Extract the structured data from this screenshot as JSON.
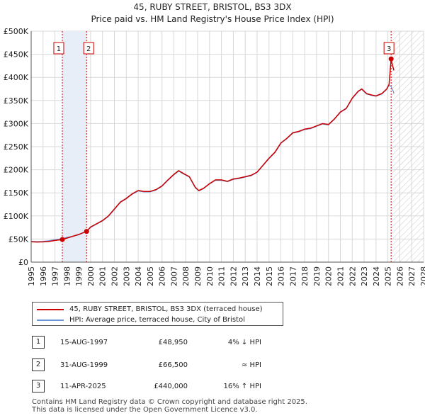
{
  "chart_data": {
    "type": "line",
    "title": "45, RUBY STREET, BRISTOL, BS3 3DX",
    "subtitle": "Price paid vs. HM Land Registry's House Price Index (HPI)",
    "xlim": [
      1995,
      2028
    ],
    "ylim": [
      0,
      500000
    ],
    "x_ticks": [
      "1995",
      "1996",
      "1997",
      "1998",
      "1999",
      "2000",
      "2001",
      "2002",
      "2003",
      "2004",
      "2005",
      "2006",
      "2007",
      "2008",
      "2009",
      "2010",
      "2011",
      "2012",
      "2013",
      "2014",
      "2015",
      "2016",
      "2017",
      "2018",
      "2019",
      "2020",
      "2021",
      "2022",
      "2023",
      "2024",
      "2025",
      "2026",
      "2027",
      "2028"
    ],
    "y_ticks": [
      {
        "value": 0,
        "label": "£0"
      },
      {
        "value": 50000,
        "label": "£50K"
      },
      {
        "value": 100000,
        "label": "£100K"
      },
      {
        "value": 150000,
        "label": "£150K"
      },
      {
        "value": 200000,
        "label": "£200K"
      },
      {
        "value": 250000,
        "label": "£250K"
      },
      {
        "value": 300000,
        "label": "£300K"
      },
      {
        "value": 350000,
        "label": "£350K"
      },
      {
        "value": 400000,
        "label": "£400K"
      },
      {
        "value": 450000,
        "label": "£450K"
      },
      {
        "value": 500000,
        "label": "£500K"
      }
    ],
    "grid": true,
    "hatched_future_from": 2025.3,
    "series": [
      {
        "name": "45, RUBY STREET, BRISTOL, BS3 3DX (terraced house)",
        "color": "#cc0000",
        "x": [
          1995.0,
          1995.5,
          1996.0,
          1996.5,
          1997.0,
          1997.62,
          1998.0,
          1998.5,
          1999.0,
          1999.66,
          2000.0,
          2000.5,
          2001.0,
          2001.5,
          2002.0,
          2002.5,
          2003.0,
          2003.5,
          2004.0,
          2004.5,
          2005.0,
          2005.5,
          2006.0,
          2006.5,
          2007.0,
          2007.4,
          2007.8,
          2008.3,
          2008.8,
          2009.1,
          2009.5,
          2010.0,
          2010.5,
          2011.0,
          2011.5,
          2012.0,
          2012.5,
          2013.0,
          2013.5,
          2014.0,
          2014.5,
          2015.0,
          2015.5,
          2016.0,
          2016.5,
          2017.0,
          2017.5,
          2018.0,
          2018.5,
          2019.0,
          2019.5,
          2020.0,
          2020.5,
          2021.0,
          2021.5,
          2022.0,
          2022.5,
          2022.8,
          2023.2,
          2023.6,
          2024.0,
          2024.5,
          2024.9,
          2025.1,
          2025.27,
          2025.35,
          2025.45,
          2025.5
        ],
        "y": [
          44000,
          43500,
          43800,
          45000,
          47000,
          48950,
          52000,
          56000,
          60000,
          66500,
          76000,
          83000,
          90000,
          100000,
          115000,
          130000,
          138000,
          148000,
          155000,
          153000,
          153000,
          157000,
          165000,
          178000,
          190000,
          198000,
          192000,
          185000,
          162000,
          155000,
          160000,
          170000,
          178000,
          178000,
          175000,
          180000,
          182000,
          185000,
          188000,
          195000,
          210000,
          225000,
          238000,
          258000,
          268000,
          280000,
          283000,
          288000,
          290000,
          295000,
          300000,
          298000,
          310000,
          325000,
          333000,
          355000,
          370000,
          375000,
          365000,
          362000,
          360000,
          365000,
          375000,
          385000,
          440000,
          430000,
          420000,
          415000
        ]
      },
      {
        "name": "HPI: Average price, terraced house, City of Bristol",
        "color": "#6a96d6",
        "x": [
          1995.0,
          1995.5,
          1996.0,
          1996.5,
          1997.0,
          1997.62,
          1998.0,
          1998.5,
          1999.0,
          1999.66,
          2000.0,
          2000.5,
          2001.0,
          2001.5,
          2002.0,
          2002.5,
          2003.0,
          2003.5,
          2004.0,
          2004.5,
          2005.0,
          2005.5,
          2006.0,
          2006.5,
          2007.0,
          2007.4,
          2007.8,
          2008.3,
          2008.8,
          2009.1,
          2009.5,
          2010.0,
          2010.5,
          2011.0,
          2011.5,
          2012.0,
          2012.5,
          2013.0,
          2013.5,
          2014.0,
          2014.5,
          2015.0,
          2015.5,
          2016.0,
          2016.5,
          2017.0,
          2017.5,
          2018.0,
          2018.5,
          2019.0,
          2019.5,
          2020.0,
          2020.5,
          2021.0,
          2021.5,
          2022.0,
          2022.5,
          2022.8,
          2023.2,
          2023.6,
          2024.0,
          2024.5,
          2024.9,
          2025.1,
          2025.27,
          2025.35,
          2025.45,
          2025.5
        ],
        "y": [
          45000,
          44500,
          45000,
          46500,
          48500,
          51000,
          53500,
          56000,
          59000,
          66500,
          75000,
          82000,
          89000,
          99000,
          114000,
          129000,
          137000,
          147000,
          154000,
          152000,
          152000,
          156000,
          164000,
          177000,
          189000,
          197000,
          191000,
          184000,
          161000,
          154000,
          159000,
          169000,
          177000,
          177000,
          174000,
          179000,
          181000,
          184000,
          187000,
          194000,
          209000,
          224000,
          237000,
          257000,
          267000,
          279000,
          282000,
          287000,
          289000,
          294000,
          299000,
          297000,
          309000,
          324000,
          332000,
          354000,
          369000,
          374000,
          364000,
          361000,
          359000,
          364000,
          374000,
          383000,
          380000,
          375000,
          370000,
          365000
        ]
      }
    ],
    "sale_markers": [
      {
        "label": "1",
        "x": 1997.62,
        "y": 48950
      },
      {
        "label": "2",
        "x": 1999.66,
        "y": 66500
      },
      {
        "label": "3",
        "x": 2025.27,
        "y": 440000
      }
    ]
  },
  "legend": {
    "property_label": "45, RUBY STREET, BRISTOL, BS3 3DX (terraced house)",
    "hpi_label": "HPI: Average price, terraced house, City of Bristol"
  },
  "transactions": [
    {
      "num": "1",
      "date": "15-AUG-1997",
      "price": "£48,950",
      "hpi": "4% ↓ HPI"
    },
    {
      "num": "2",
      "date": "31-AUG-1999",
      "price": "£66,500",
      "hpi": "≈ HPI"
    },
    {
      "num": "3",
      "date": "11-APR-2025",
      "price": "£440,000",
      "hpi": "16% ↑ HPI"
    }
  ],
  "footer": {
    "line1": "Contains HM Land Registry data © Crown copyright and database right 2025.",
    "line2": "This data is licensed under the Open Government Licence v3.0."
  }
}
